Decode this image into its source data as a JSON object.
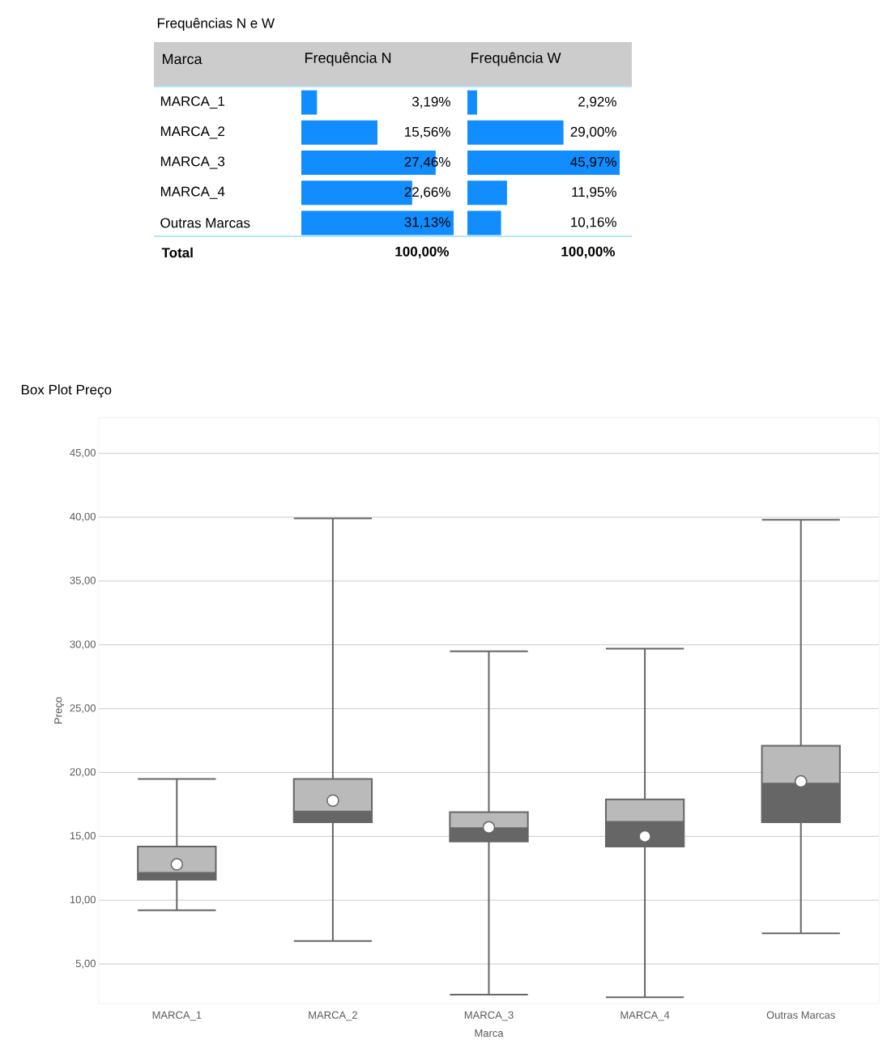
{
  "chart_data": [
    {
      "type": "bar",
      "orientation": "horizontal",
      "title": "Frequências N e W",
      "ylabel": "Marca",
      "xlabel": "Frequência N",
      "tick_labels": "y",
      "categories": [
        "MARCA_1",
        "MARCA_2",
        "MARCA_3",
        "MARCA_4",
        "Outras Marcas"
      ],
      "series": [
        {
          "color": "#118dff",
          "values": [
            3.19,
            15.56,
            27.46,
            22.66,
            31.13
          ],
          "value_labels": [
            "3,19%",
            "15,56%",
            "27,46%",
            "22,66%",
            "31,13%"
          ]
        }
      ],
      "annotations": [
        "Total",
        "100,00%"
      ]
    },
    {
      "type": "bar",
      "orientation": "horizontal",
      "xlabel": "Frequência W",
      "tick_labels": false,
      "categories": [
        null,
        null,
        null,
        null,
        null
      ],
      "series": [
        {
          "color": "#118dff",
          "values": [
            2.92,
            29.0,
            45.97,
            11.95,
            10.16
          ],
          "value_labels": [
            "2,92%",
            "29,00%",
            "45,97%",
            "11,95%",
            "10,16%"
          ]
        }
      ],
      "annotations": [
        "100,00%"
      ]
    },
    {
      "type": "box",
      "title": "Box Plot Preço",
      "xlabel": "Marca",
      "ylabel": "Preço",
      "categories": [
        "MARCA_1",
        "MARCA_2",
        "MARCA_3",
        "MARCA_4",
        "Outras Marcas"
      ],
      "ylim": [
        1.9,
        47.8
      ],
      "yticks": [
        {
          "value": 5,
          "label": "5,00"
        },
        {
          "value": 10,
          "label": "10,00"
        },
        {
          "value": 15,
          "label": "15,00"
        },
        {
          "value": 20,
          "label": "20,00"
        },
        {
          "value": 25,
          "label": "25,00"
        },
        {
          "value": 30,
          "label": "30,00"
        },
        {
          "value": 35,
          "label": "35,00"
        },
        {
          "value": 40,
          "label": "40,00"
        },
        {
          "value": 45,
          "label": "45,00"
        }
      ],
      "grid": "y",
      "series": [
        {
          "color": "#666666",
          "boxes": [
            {
              "low": 9.2,
              "q1": 11.6,
              "median": 12.2,
              "q3": 14.2,
              "high": 19.5,
              "mean": 12.8
            },
            {
              "low": 6.8,
              "q1": 16.1,
              "median": 17.0,
              "q3": 19.5,
              "high": 39.9,
              "mean": 17.8
            },
            {
              "low": 2.6,
              "q1": 14.6,
              "median": 15.7,
              "q3": 16.9,
              "high": 29.5,
              "mean": 15.7
            },
            {
              "low": 2.4,
              "q1": 14.2,
              "median": 16.2,
              "q3": 17.9,
              "high": 29.7,
              "mean": 15.0
            },
            {
              "low": 7.4,
              "q1": 16.1,
              "median": 19.2,
              "q3": 22.1,
              "high": 39.8,
              "mean": 19.3
            }
          ]
        }
      ]
    }
  ]
}
